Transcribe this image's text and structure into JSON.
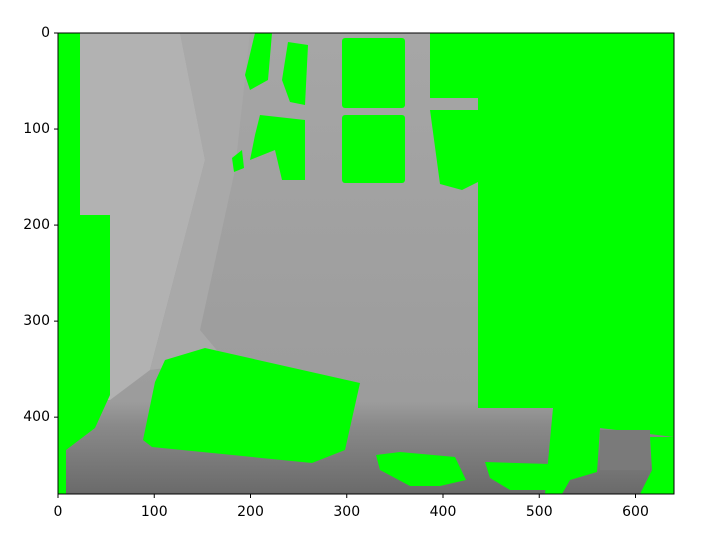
{
  "chart_data": {
    "type": "image",
    "xlim": [
      0,
      640
    ],
    "ylim": [
      480,
      0
    ],
    "xticks": [
      0,
      100,
      200,
      300,
      400,
      500,
      600
    ],
    "yticks": [
      0,
      100,
      200,
      300,
      400
    ]
  }
}
